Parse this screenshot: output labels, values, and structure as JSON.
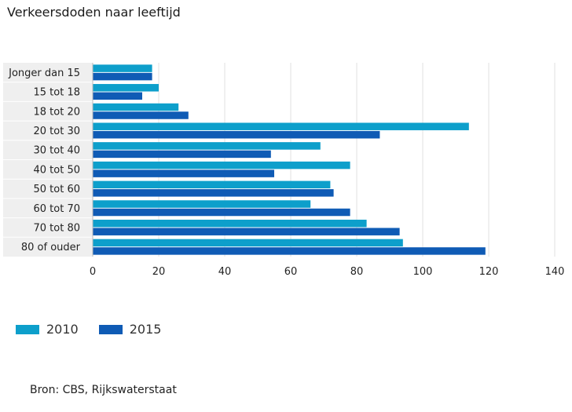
{
  "title": "Verkeersdoden naar leeftijd",
  "source": "Bron: CBS, Rijkswaterstaat",
  "chart_data": {
    "type": "bar",
    "orientation": "horizontal",
    "title": "Verkeersdoden naar leeftijd",
    "xlabel": "",
    "ylabel": "",
    "xlim": [
      0,
      140
    ],
    "ticks": [
      0,
      20,
      40,
      60,
      80,
      100,
      120,
      140
    ],
    "grid": true,
    "legend_position": "bottom-left",
    "categories": [
      "Jonger dan 15",
      "15 tot 18",
      "18 tot 20",
      "20 tot 30",
      "30 tot 40",
      "40 tot 50",
      "50 tot 60",
      "60 tot 70",
      "70 tot 80",
      "80 of ouder"
    ],
    "series": [
      {
        "name": "2010",
        "color": "#0d9fcb",
        "values": [
          18,
          20,
          26,
          114,
          69,
          78,
          72,
          66,
          83,
          94
        ]
      },
      {
        "name": "2015",
        "color": "#0f5bb5",
        "values": [
          18,
          15,
          29,
          87,
          54,
          55,
          73,
          78,
          93,
          119
        ]
      }
    ]
  }
}
